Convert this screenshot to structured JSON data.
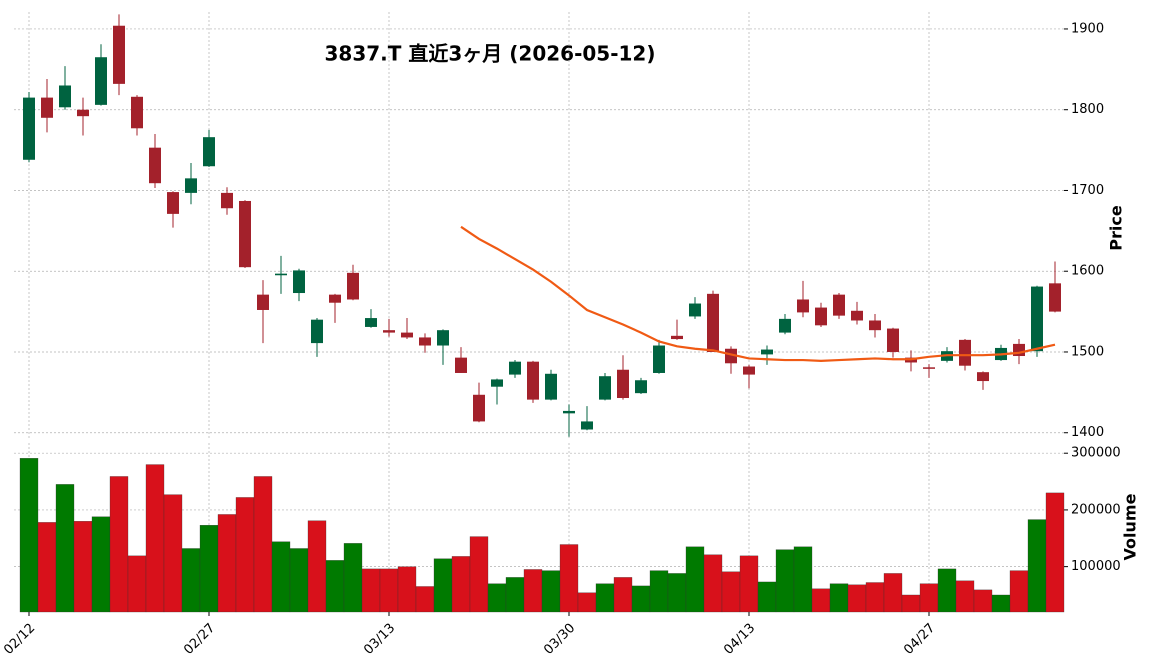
{
  "chart_data": {
    "type": "candlestick",
    "title": "3837.T 直近3ヶ月 (2026-05-12)",
    "ylabel": "Price",
    "y2label": "Volume",
    "categories": [
      "02/12",
      null,
      null,
      null,
      null,
      null,
      null,
      null,
      null,
      null,
      "02/27",
      null,
      null,
      null,
      null,
      null,
      null,
      null,
      null,
      null,
      "03/13",
      null,
      null,
      null,
      null,
      null,
      null,
      null,
      null,
      null,
      "03/30",
      null,
      null,
      null,
      null,
      null,
      null,
      null,
      null,
      null,
      "04/13",
      null,
      null,
      null,
      null,
      null,
      null,
      null,
      null,
      null,
      "04/27",
      null,
      null,
      null,
      null,
      null,
      null,
      null
    ],
    "open": [
      1738,
      1815,
      1803,
      1800,
      1806,
      1904,
      1816,
      1753,
      1698,
      1697,
      1730,
      1697,
      1687,
      1571,
      1595,
      1573,
      1511,
      1571,
      1598,
      1531,
      1527,
      1524,
      1518,
      1508,
      1493,
      1447,
      1457,
      1472,
      1488,
      1441,
      1424,
      1404,
      1441,
      1478,
      1449,
      1474,
      1520,
      1544,
      1572,
      1504,
      1482,
      1497,
      1524,
      1565,
      1555,
      1571,
      1551,
      1539,
      1529,
      1493,
      1481,
      1489,
      1515,
      1475,
      1490,
      1510,
      1501,
      1585
    ],
    "high": [
      1822,
      1838,
      1854,
      1815,
      1881,
      1918,
      1818,
      1770,
      1699,
      1734,
      1775,
      1704,
      1688,
      1589,
      1619,
      1603,
      1542,
      1572,
      1608,
      1553,
      1541,
      1542,
      1523,
      1528,
      1506,
      1462,
      1467,
      1490,
      1489,
      1478,
      1435,
      1433,
      1474,
      1496,
      1468,
      1515,
      1540,
      1568,
      1576,
      1507,
      1484,
      1508,
      1547,
      1588,
      1561,
      1573,
      1562,
      1547,
      1530,
      1502,
      1485,
      1506,
      1516,
      1476,
      1509,
      1516,
      1582,
      1612
    ],
    "low": [
      1735,
      1772,
      1800,
      1768,
      1805,
      1818,
      1768,
      1703,
      1654,
      1683,
      1729,
      1670,
      1604,
      1511,
      1572,
      1563,
      1494,
      1536,
      1564,
      1530,
      1519,
      1516,
      1499,
      1484,
      1474,
      1413,
      1435,
      1468,
      1437,
      1440,
      1395,
      1403,
      1440,
      1441,
      1448,
      1473,
      1515,
      1541,
      1500,
      1473,
      1455,
      1484,
      1522,
      1543,
      1531,
      1541,
      1534,
      1518,
      1493,
      1476,
      1468,
      1487,
      1477,
      1453,
      1489,
      1485,
      1494,
      1549
    ],
    "close": [
      1815,
      1790,
      1830,
      1792,
      1865,
      1832,
      1777,
      1709,
      1671,
      1715,
      1766,
      1678,
      1605,
      1552,
      1597,
      1601,
      1540,
      1561,
      1565,
      1542,
      1524,
      1518,
      1508,
      1527,
      1474,
      1414,
      1466,
      1488,
      1441,
      1473,
      1427,
      1414,
      1470,
      1443,
      1465,
      1508,
      1516,
      1560,
      1500,
      1486,
      1472,
      1503,
      1541,
      1549,
      1533,
      1545,
      1539,
      1527,
      1500,
      1487,
      1480,
      1501,
      1483,
      1464,
      1505,
      1495,
      1581,
      1550
    ],
    "ma": [
      null,
      null,
      null,
      null,
      null,
      null,
      null,
      null,
      null,
      null,
      null,
      null,
      null,
      null,
      null,
      null,
      null,
      null,
      null,
      null,
      null,
      null,
      null,
      null,
      1655,
      1640,
      1628,
      1615,
      1602,
      1587,
      1570,
      1552,
      1543,
      1534,
      1524,
      1513,
      1507,
      1504,
      1502,
      1497,
      1492,
      1491,
      1490,
      1490,
      1489,
      1490,
      1491,
      1492,
      1491,
      1491,
      1494,
      1496,
      1496,
      1496,
      1497,
      1499,
      1504,
      1509
    ],
    "volume": [
      291000,
      178000,
      245000,
      180000,
      188000,
      259000,
      119000,
      280000,
      227000,
      132000,
      173000,
      192000,
      222000,
      259000,
      144000,
      132000,
      181000,
      111000,
      141000,
      96000,
      96000,
      100000,
      65000,
      114000,
      118000,
      153000,
      70000,
      81000,
      95000,
      93000,
      139000,
      54000,
      70000,
      81000,
      66000,
      93000,
      88000,
      135000,
      121000,
      91000,
      119000,
      73000,
      130000,
      135000,
      61000,
      70000,
      68000,
      72000,
      88000,
      50000,
      70000,
      96000,
      75000,
      59000,
      50000,
      93000,
      183000,
      230000
    ],
    "up_color": "#006340",
    "down_color": "#a3212b",
    "ma_color": "#f05a14",
    "volume_up_color": "#007a00",
    "volume_down_color": "#d8111b",
    "ylim": [
      1391,
      1921
    ],
    "yticks": [
      1400,
      1500,
      1600,
      1700,
      1800,
      1900
    ],
    "y2lim": [
      20000,
      318000
    ],
    "y2ticks": [
      100000,
      200000,
      300000
    ],
    "grid": true
  }
}
